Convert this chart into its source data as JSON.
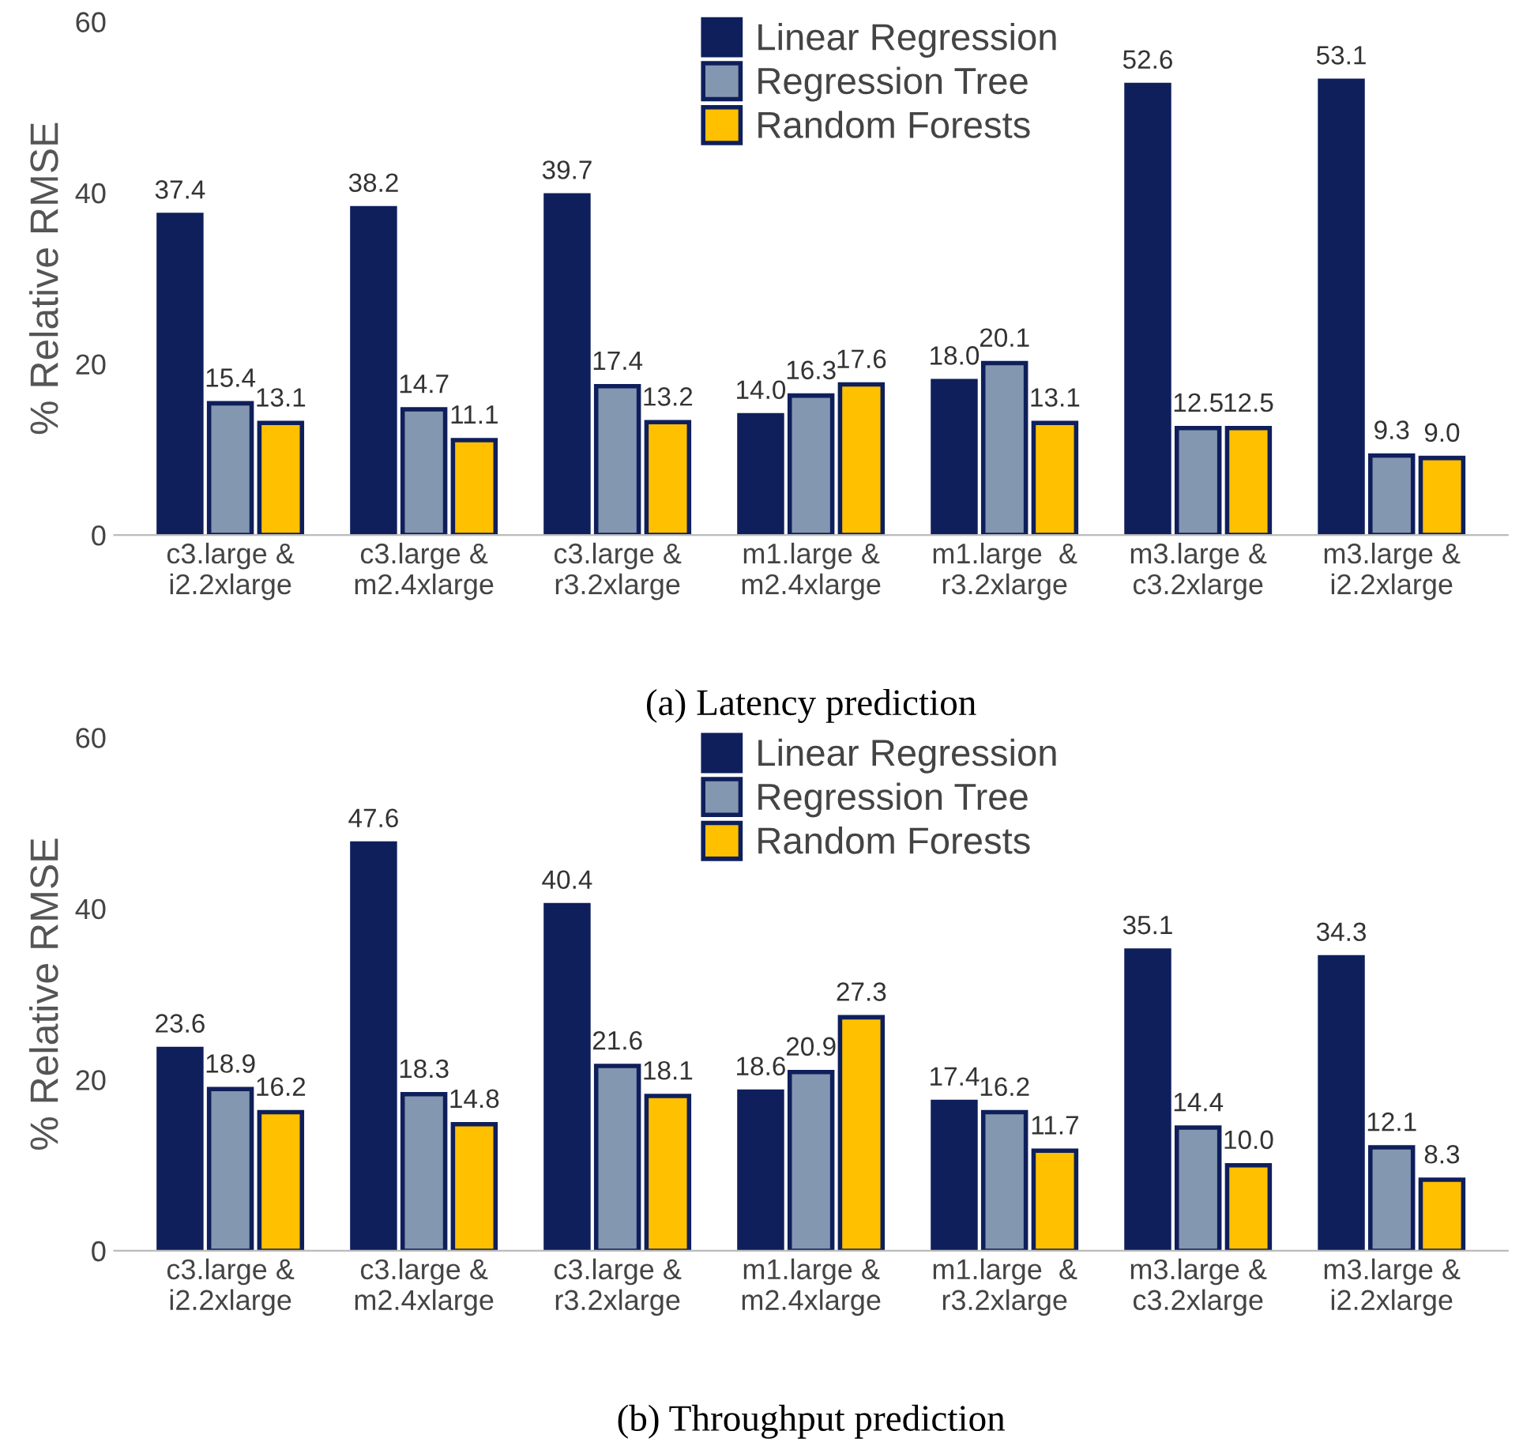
{
  "chart_data": [
    {
      "type": "bar",
      "title": "(a) Latency prediction",
      "ylabel": "% Relative RMSE",
      "categories": [
        "c3.large &\ni2.2xlarge",
        "c3.large &\nm2.4xlarge",
        "c3.large &\nr3.2xlarge",
        "m1.large &\nm2.4xlarge",
        "m1.large  &\nr3.2xlarge",
        "m3.large &\nc3.2xlarge",
        "m3.large &\ni2.2xlarge"
      ],
      "series": [
        {
          "name": "Linear Regression",
          "color": "#0e1f5b",
          "values": [
            37.4,
            38.2,
            39.7,
            14.0,
            18.0,
            52.6,
            53.1
          ],
          "value_labels": [
            "37.4",
            "38.2",
            "39.7",
            "14.0",
            "18.0",
            "52.6",
            "53.1"
          ]
        },
        {
          "name": "Regression Tree",
          "color": "#8497b0",
          "values": [
            15.4,
            14.7,
            17.4,
            16.3,
            20.1,
            12.5,
            9.3
          ],
          "value_labels": [
            "15.4",
            "14.7",
            "17.4",
            "16.3",
            "20.1",
            "12.5",
            "9.3"
          ]
        },
        {
          "name": "Random Forests",
          "color": "#ffc000",
          "values": [
            13.1,
            11.1,
            13.2,
            17.6,
            13.1,
            12.5,
            9.0
          ],
          "value_labels": [
            "13.1",
            "11.1",
            "13.2",
            "17.6",
            "13.1",
            "12.5",
            "9.0"
          ]
        }
      ],
      "ylim": [
        0,
        60
      ],
      "yticks": [
        0,
        20,
        40,
        60
      ],
      "legend": "top",
      "grid": false
    },
    {
      "type": "bar",
      "title": "(b) Throughput prediction",
      "ylabel": "% Relative RMSE",
      "categories": [
        "c3.large &\ni2.2xlarge",
        "c3.large &\nm2.4xlarge",
        "c3.large &\nr3.2xlarge",
        "m1.large &\nm2.4xlarge",
        "m1.large  &\nr3.2xlarge",
        "m3.large &\nc3.2xlarge",
        "m3.large &\ni2.2xlarge"
      ],
      "series": [
        {
          "name": "Linear Regression",
          "color": "#0e1f5b",
          "values": [
            23.6,
            47.6,
            40.4,
            18.6,
            17.4,
            35.1,
            34.3
          ],
          "value_labels": [
            "23.6",
            "47.6",
            "40.4",
            "18.6",
            "17.4",
            "35.1",
            "34.3"
          ]
        },
        {
          "name": "Regression Tree",
          "color": "#8497b0",
          "values": [
            18.9,
            18.3,
            21.6,
            20.9,
            16.2,
            14.4,
            12.1
          ],
          "value_labels": [
            "18.9",
            "18.3",
            "21.6",
            "20.9",
            "16.2",
            "14.4",
            "12.1"
          ]
        },
        {
          "name": "Random Forests",
          "color": "#ffc000",
          "values": [
            16.2,
            14.8,
            18.1,
            27.3,
            11.7,
            10.0,
            8.3
          ],
          "value_labels": [
            "16.2",
            "14.8",
            "18.1",
            "27.3",
            "11.7",
            "10.0",
            "8.3"
          ]
        }
      ],
      "ylim": [
        0,
        60
      ],
      "yticks": [
        0,
        20,
        40,
        60
      ],
      "legend": "top",
      "grid": false
    }
  ]
}
